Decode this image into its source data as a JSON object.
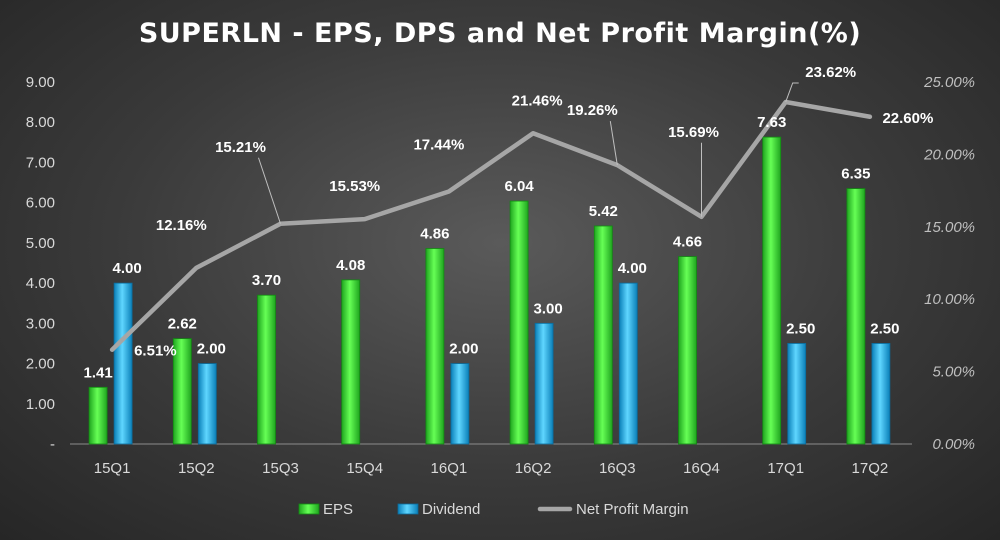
{
  "chart_data": {
    "type": "bar",
    "title": "SUPERLN - EPS, DPS and Net Profit Margin(%)",
    "categories": [
      "15Q1",
      "15Q2",
      "15Q3",
      "15Q4",
      "16Q1",
      "16Q2",
      "16Q3",
      "16Q4",
      "17Q1",
      "17Q2"
    ],
    "series": [
      {
        "name": "EPS",
        "type": "bar",
        "axis": "left",
        "color": "#39e639",
        "values": [
          1.41,
          2.62,
          3.7,
          4.08,
          4.86,
          6.04,
          5.42,
          4.66,
          7.63,
          6.35
        ],
        "labels": [
          "1.41",
          "2.62",
          "3.70",
          "4.08",
          "4.86",
          "6.04",
          "5.42",
          "4.66",
          "7.63",
          "6.35"
        ]
      },
      {
        "name": "Dividend",
        "type": "bar",
        "axis": "left",
        "color": "#1eaee6",
        "values": [
          4.0,
          2.0,
          null,
          null,
          2.0,
          3.0,
          4.0,
          null,
          2.5,
          2.5
        ],
        "labels": [
          "4.00",
          "2.00",
          null,
          null,
          "2.00",
          "3.00",
          "4.00",
          null,
          "2.50",
          "2.50"
        ]
      },
      {
        "name": "Net Profit Margin",
        "type": "line",
        "axis": "right",
        "color": "#a6a6a6",
        "values": [
          6.51,
          12.16,
          15.21,
          15.53,
          17.44,
          21.46,
          19.26,
          15.69,
          23.62,
          22.6
        ],
        "labels": [
          "6.51%",
          "12.16%",
          "15.21%",
          "15.53%",
          "17.44%",
          "21.46%",
          "19.26%",
          "15.69%",
          "23.62%",
          "22.60%"
        ]
      }
    ],
    "y_left": {
      "min": 0,
      "max": 9,
      "ticks": [
        "-",
        "1.00",
        "2.00",
        "3.00",
        "4.00",
        "5.00",
        "6.00",
        "7.00",
        "8.00",
        "9.00"
      ]
    },
    "y_right": {
      "min": 0,
      "max": 25,
      "ticks": [
        "0.00%",
        "5.00%",
        "10.00%",
        "15.00%",
        "20.00%",
        "25.00%"
      ]
    },
    "grid": false,
    "legend_position": "bottom"
  }
}
